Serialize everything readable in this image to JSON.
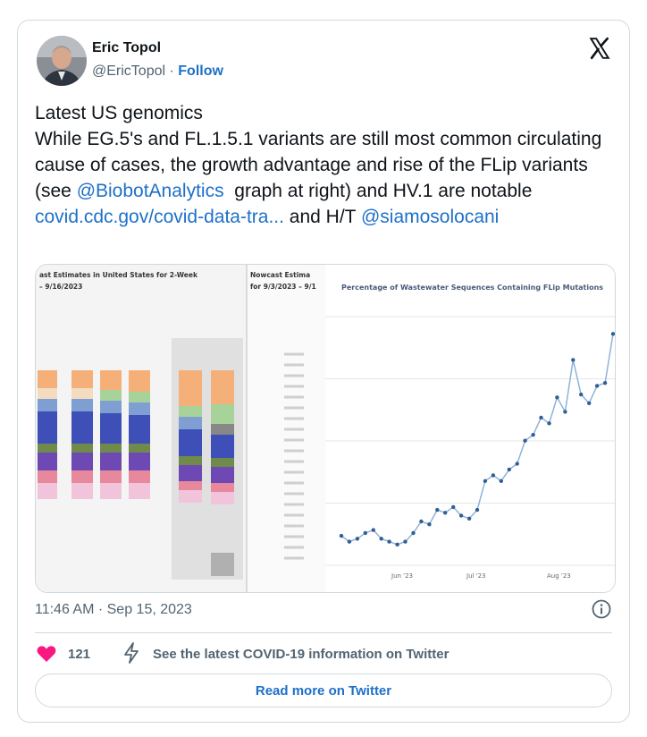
{
  "author": {
    "name": "Eric Topol",
    "handle": "@EricTopol",
    "separator": "·",
    "follow_label": "Follow"
  },
  "tweet": {
    "line1": "Latest US genomics",
    "body_part1": "While EG.5's and FL.1.5.1 variants are still most common circulating cause of cases, the growth advantage and rise of the FLip variants (see ",
    "mention1": "@BiobotAnalytics",
    "body_part2": "  graph at right) and HV.1 are notable",
    "link": "covid.cdc.gov/covid-data-tra...",
    "body_part3": " and H/T ",
    "mention2": "@siamosolocani"
  },
  "media": {
    "left_title": "ast Estimates in United States for 2-Week",
    "left_date": "– 9/16/2023",
    "mid_title": "Nowcast Estima",
    "mid_date": "for 9/3/2023 – 9/1",
    "chart_title": "Percentage of Wastewater Sequences Containing FLip Mutations",
    "x_ticks": [
      "Jun '23",
      "Jul '23",
      "Aug '23"
    ]
  },
  "chart_data": {
    "type": "line",
    "title": "Percentage of Wastewater Sequences Containing FLip Mutations",
    "xlabel": "",
    "ylabel": "",
    "x_ticks": [
      "Jun '23",
      "Jul '23",
      "Aug '23"
    ],
    "grid": true,
    "series": [
      {
        "values": [
          4,
          2,
          3,
          5,
          6,
          3,
          2,
          1,
          2,
          5,
          9,
          8,
          13,
          12,
          14,
          11,
          10,
          13,
          23,
          25,
          23,
          27,
          29,
          37,
          39,
          45,
          43,
          52,
          47,
          65,
          53,
          50,
          56,
          57,
          74
        ]
      }
    ],
    "line_color": "#8fb3d9",
    "point_color": "#2f5f96"
  },
  "footer": {
    "timestamp": "11:46 AM · Sep 15, 2023",
    "likes": "121",
    "covid_link": "See the latest COVID-19 information on Twitter",
    "read_more": "Read more on Twitter"
  },
  "colors": {
    "link": "#1d70c8",
    "heart": "#f91880",
    "muted": "#536471"
  },
  "icons": [
    "x-logo-icon",
    "info-icon",
    "heart-icon",
    "bolt-icon"
  ]
}
